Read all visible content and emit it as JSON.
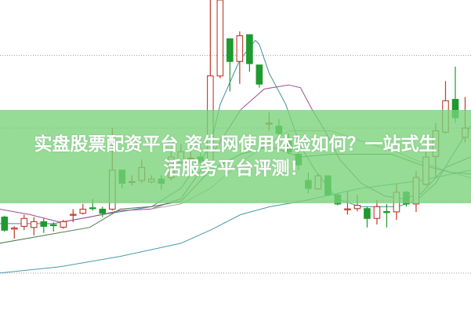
{
  "banner": {
    "title_line1": "实盘股票配资平台 资生网使用体验如何？一站式生",
    "title_line2": "活服务平台评测！",
    "color": "#8fd98f"
  },
  "chart_data": {
    "type": "candlestick",
    "title": "",
    "xlabel": "",
    "ylabel": "",
    "xlim": [
      -0.46,
      47.6
    ],
    "ylim": [
      -15,
      100
    ],
    "grid": {
      "horizontal_dotted": [
        79.7,
        53.1,
        26.4,
        0
      ]
    },
    "up_color": "#c0392b",
    "down_color": "#1e9a2e",
    "candles_ohlc": [
      [
        20.5,
        21.0,
        15.2,
        15.7
      ],
      [
        16.1,
        17.1,
        12.6,
        16.5
      ],
      [
        17.1,
        21.4,
        15.7,
        20.0
      ],
      [
        16.7,
        20.5,
        13.8,
        18.8
      ],
      [
        18.8,
        20.0,
        14.7,
        17.1
      ],
      [
        17.7,
        18.6,
        15.2,
        17.5
      ],
      [
        16.8,
        19.5,
        16.2,
        18.8
      ],
      [
        21.3,
        23.4,
        18.6,
        21.5
      ],
      [
        21.9,
        25.3,
        21.4,
        23.4
      ],
      [
        23.9,
        27.2,
        22.9,
        23.7
      ],
      [
        23.4,
        24.3,
        20.5,
        21.9
      ],
      [
        23.4,
        53.1,
        22.9,
        37.7
      ],
      [
        37.7,
        37.7,
        31.0,
        32.9
      ],
      [
        33.3,
        35.8,
        32.0,
        33.5
      ],
      [
        33.9,
        41.6,
        32.9,
        38.7
      ],
      [
        33.4,
        35.8,
        32.9,
        34.4
      ],
      [
        34.4,
        35.8,
        30.5,
        32.9
      ],
      [
        34.9,
        44.4,
        33.9,
        42.5
      ],
      [
        40.6,
        47.3,
        39.6,
        44.4
      ],
      [
        41.9,
        44.4,
        41.1,
        42.1
      ],
      [
        42.5,
        44.0,
        39.6,
        41.1
      ],
      [
        41.1,
        100,
        40.6,
        72.2
      ],
      [
        72.2,
        100,
        71.3,
        100
      ],
      [
        85.8,
        85.8,
        66.5,
        77.5
      ],
      [
        77.5,
        88.5,
        69.3,
        86.9
      ],
      [
        87.3,
        87.3,
        73.7,
        76.7
      ],
      [
        76.2,
        76.2,
        67.9,
        69.2
      ],
      [
        54.7,
        58.8,
        52.1,
        54.9
      ],
      [
        53.8,
        56.4,
        48.3,
        51.1
      ],
      [
        48.3,
        51.1,
        43.5,
        44.4
      ],
      [
        43.5,
        45.4,
        37.7,
        39.6
      ],
      [
        33.9,
        36.8,
        29.1,
        31.0
      ],
      [
        30.8,
        36.3,
        30.5,
        35.6
      ],
      [
        35.6,
        35.8,
        28.2,
        28.6
      ],
      [
        28.6,
        29.1,
        24.8,
        25.3
      ],
      [
        23.3,
        30.1,
        21.4,
        23.5
      ],
      [
        23.6,
        28.6,
        22.6,
        24.8
      ],
      [
        23.6,
        24.3,
        16.7,
        20.0
      ],
      [
        20.0,
        26.7,
        17.8,
        24.3
      ],
      [
        22.5,
        25.3,
        16.7,
        22.3
      ],
      [
        22.4,
        32.5,
        19.5,
        29.6
      ],
      [
        29.6,
        30.1,
        24.3,
        25.3
      ],
      [
        25.3,
        37.3,
        22.4,
        35.0
      ],
      [
        32.5,
        44.4,
        32.0,
        42.5
      ],
      [
        42.7,
        55.0,
        34.9,
        52.1
      ],
      [
        51.6,
        70.3,
        51.1,
        63.1
      ],
      [
        63.6,
        75.6,
        55.0,
        56.9
      ],
      [
        49.7,
        64.5,
        47.8,
        53.1
      ]
    ],
    "series": [
      {
        "color": "#3f8fa0",
        "points": [
          [
            -0.5,
            18.1
          ],
          [
            5,
            18.1
          ],
          [
            10,
            21.4
          ],
          [
            15,
            24.3
          ],
          [
            18,
            31.0
          ],
          [
            21,
            46.4
          ],
          [
            22,
            61.7
          ],
          [
            24,
            78.0
          ],
          [
            25.6,
            85.2
          ],
          [
            26,
            83.7
          ],
          [
            27,
            73.2
          ],
          [
            28.7,
            61.7
          ],
          [
            30.2,
            46.4
          ],
          [
            31.7,
            37.7
          ],
          [
            33.9,
            27.2
          ],
          [
            36.3,
            24.3
          ],
          [
            38.2,
            24.3
          ],
          [
            40,
            24.3
          ],
          [
            41.9,
            26.2
          ],
          [
            44,
            32.9
          ],
          [
            45.6,
            42.5
          ],
          [
            47.6,
            54.0
          ]
        ]
      },
      {
        "color": "#a04a8c",
        "points": [
          [
            -0.5,
            23.4
          ],
          [
            2.6,
            21.4
          ],
          [
            5.7,
            18.6
          ],
          [
            8.7,
            20.5
          ],
          [
            11.8,
            22.9
          ],
          [
            14.9,
            23.4
          ],
          [
            18,
            27.2
          ],
          [
            21,
            42.5
          ],
          [
            24.1,
            59.8
          ],
          [
            26.5,
            67.4
          ],
          [
            29,
            68.9
          ],
          [
            30.2,
            67.9
          ],
          [
            31.4,
            59.8
          ],
          [
            32.7,
            52.1
          ],
          [
            34.2,
            41.6
          ],
          [
            36.4,
            32.9
          ],
          [
            38.8,
            28.2
          ],
          [
            40.7,
            27.2
          ],
          [
            42.5,
            29.1
          ],
          [
            45,
            38.7
          ],
          [
            47.6,
            42.5
          ]
        ]
      },
      {
        "color": "#a8a8a8",
        "points": [
          [
            14.9,
            23.4
          ],
          [
            18,
            25.3
          ],
          [
            21,
            31.0
          ],
          [
            24.1,
            40.6
          ],
          [
            26.5,
            46.4
          ],
          [
            29,
            52.1
          ],
          [
            33.3,
            52.1
          ],
          [
            36.4,
            48.3
          ],
          [
            40,
            44.4
          ],
          [
            42.5,
            40.6
          ],
          [
            45.6,
            36.8
          ],
          [
            47.6,
            34.9
          ]
        ]
      },
      {
        "color": "#4a7a4a",
        "points": [
          [
            -0.5,
            10.9
          ],
          [
            4.1,
            13.8
          ],
          [
            8.7,
            16.7
          ],
          [
            11.8,
            23.4
          ],
          [
            14.9,
            24.3
          ],
          [
            18,
            26.2
          ],
          [
            21,
            37.7
          ],
          [
            24.1,
            43.5
          ],
          [
            27.1,
            46.4
          ],
          [
            30.2,
            42.5
          ],
          [
            33.3,
            43.5
          ],
          [
            39.5,
            43.5
          ],
          [
            42.5,
            39.6
          ],
          [
            45.6,
            36.8
          ],
          [
            47.6,
            36.3
          ]
        ]
      },
      {
        "color": "#4a9aaa",
        "points": [
          [
            -0.5,
            0
          ],
          [
            5.7,
            2.3
          ],
          [
            11.8,
            6.1
          ],
          [
            18,
            10.9
          ],
          [
            21,
            15.7
          ],
          [
            24.1,
            21.4
          ],
          [
            27.1,
            24.3
          ],
          [
            30.2,
            26.2
          ],
          [
            36.3,
            31.0
          ],
          [
            42.5,
            33.9
          ],
          [
            47.6,
            37.7
          ]
        ]
      }
    ]
  }
}
